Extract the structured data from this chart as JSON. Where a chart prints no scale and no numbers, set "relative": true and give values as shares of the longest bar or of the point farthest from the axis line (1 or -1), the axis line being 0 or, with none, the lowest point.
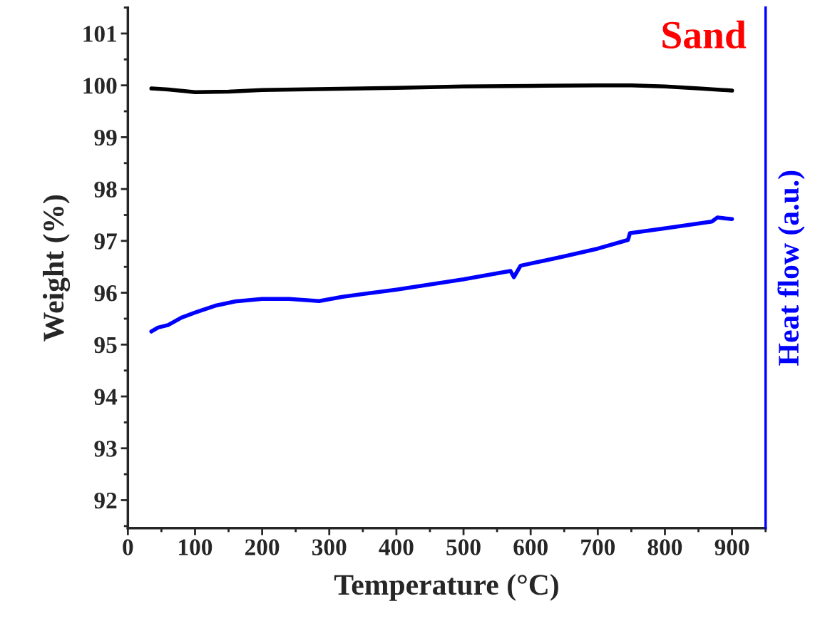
{
  "chart_data": [
    {
      "type": "line",
      "xlabel": "Temperature (°C)",
      "ylabel": "Weight (%)",
      "annotations": [
        "Sand"
      ],
      "xlim": [
        0,
        950
      ],
      "xticks": [
        0,
        100,
        200,
        300,
        400,
        500,
        600,
        700,
        800,
        900
      ],
      "ylim": [
        91.46,
        101.5
      ],
      "yticks": [
        92,
        93,
        94,
        95,
        96,
        97,
        98,
        99,
        100,
        101
      ],
      "grid": false,
      "legend": false,
      "series": [
        {
          "color": "#000000",
          "x": [
            35,
            60,
            100,
            150,
            200,
            300,
            400,
            500,
            600,
            700,
            750,
            800,
            850,
            900
          ],
          "values": [
            99.94,
            99.92,
            99.87,
            99.88,
            99.91,
            99.93,
            99.95,
            99.98,
            99.99,
            100.0,
            100.0,
            99.98,
            99.94,
            99.9
          ]
        }
      ]
    },
    {
      "type": "line",
      "y2label": "Heat flow (a.u.)",
      "relative": true,
      "xlim": [
        0,
        950
      ],
      "series": [
        {
          "color": "#0000ff",
          "axis": "y2",
          "x": [
            35,
            45,
            60,
            80,
            100,
            130,
            160,
            200,
            240,
            285,
            320,
            400,
            500,
            570,
            575,
            585,
            650,
            700,
            745,
            748,
            800,
            870,
            878,
            900
          ],
          "values": [
            0.633,
            0.646,
            0.654,
            0.678,
            0.694,
            0.716,
            0.73,
            0.738,
            0.738,
            0.731,
            0.745,
            0.768,
            0.801,
            0.828,
            0.808,
            0.845,
            0.875,
            0.9,
            0.928,
            0.95,
            0.965,
            0.987,
            1.0,
            0.995
          ]
        }
      ]
    }
  ]
}
